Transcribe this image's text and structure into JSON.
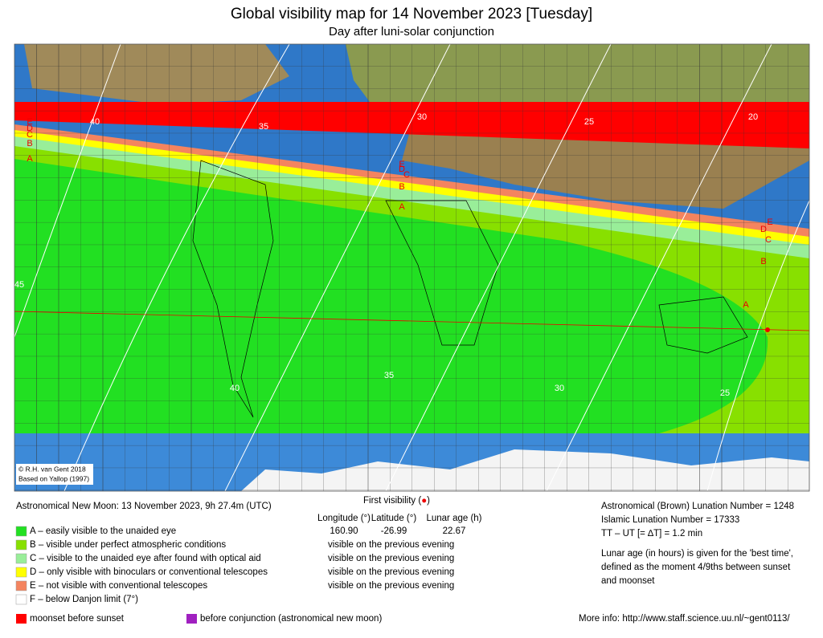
{
  "header": {
    "title": "Global visibility map for 14 November 2023 [Tuesday]",
    "subtitle": "Day after luni-solar conjunction"
  },
  "map": {
    "credit": [
      "© R.H. van Gent 2018",
      "Based on Yallop (1997)"
    ],
    "contour_labels": [
      "40",
      "35",
      "30",
      "25",
      "20",
      "45",
      "40",
      "35",
      "30",
      "25"
    ],
    "zone_labels": [
      "E",
      "D",
      "C",
      "B",
      "A",
      "E",
      "D",
      "C",
      "B",
      "A",
      "E",
      "D",
      "C",
      "B",
      "A"
    ]
  },
  "info": {
    "new_moon": "Astronomical New Moon: 13 November 2023, 9h 27.4m (UTC)",
    "first_visibility": [
      "First visibility (",
      "●",
      ")"
    ],
    "columns": [
      "Longitude (°)",
      "Latitude (°)",
      "Lunar age (h)"
    ],
    "values": [
      "160.90",
      "-26.99",
      "22.67"
    ],
    "legend": [
      {
        "label": "A – easily visible to the unaided eye",
        "color": "#22e022",
        "note": null
      },
      {
        "label": "B – visible under perfect atmospheric conditions",
        "color": "#88e000",
        "note": "visible on the previous evening"
      },
      {
        "label": "C – visible to the unaided eye after found with optical aid",
        "color": "#99ee99",
        "note": "visible on the previous evening"
      },
      {
        "label": "D – only visible with binoculars or conventional telescopes",
        "color": "#ffff00",
        "note": "visible on the previous evening"
      },
      {
        "label": "E – not visible with conventional telescopes",
        "color": "#f4845f",
        "note": "visible on the previous evening"
      },
      {
        "label": "F – below Danjon limit (7°)",
        "color": "#ffffff",
        "note": null
      }
    ],
    "extra_legend": [
      {
        "label": "moonset before sunset",
        "color": "#ff0000"
      },
      {
        "label": "before conjunction (astronomical new moon)",
        "color": "#a020c0"
      }
    ],
    "right": [
      "Astronomical (Brown) Lunation Number = 1248",
      "Islamic Lunation Number = 17333",
      "TT – UT [= ∆T] = 1.2 min"
    ],
    "note": [
      "Lunar age (in hours) is given for the 'best time',",
      "defined as the moment 4/9ths between sunset",
      "and moonset"
    ],
    "more_info": "More info: http://www.staff.science.uu.nl/~gent0113/"
  }
}
